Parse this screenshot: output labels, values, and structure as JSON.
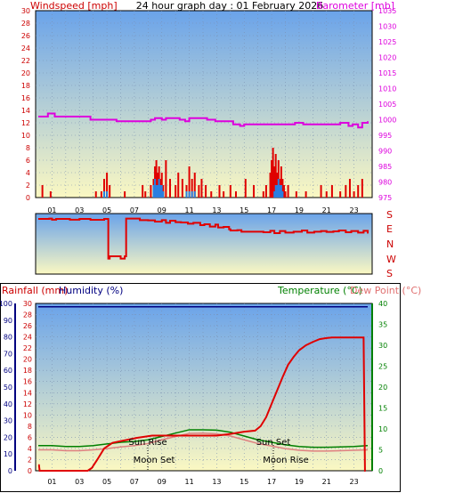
{
  "colors": {
    "sky_top": "#6aa3ea",
    "sky_bottom": "#fbf8c2",
    "wind": "#e00000",
    "gust": "#2a7fe0",
    "barometer": "#dd00dd",
    "rain": "#e00000",
    "humidity": "#000080",
    "temperature": "#008000",
    "dewpoint": "#e08080",
    "direction": "#e00000"
  },
  "charts": {
    "wind_baro": {
      "title": "24 hour graph day : 01 February 2026",
      "left_label": "Windspeed [mph]",
      "right_label": "Barometer [mb]"
    },
    "direction": {
      "compass_labels": [
        "S",
        "E",
        "N",
        "W",
        "S"
      ]
    },
    "temp_rain": {
      "left_label_1": "Rainfall (mm)",
      "left_label_2": "Humidity (%)",
      "right_label_1": "Temperature (°C)",
      "right_label_2": "Dew Point (°C)",
      "annotations": {
        "sun_rise": "Sun Rise",
        "sun_set": "Sun Set",
        "moon_set": "Moon Set",
        "moon_rise": "Moon Rise"
      }
    }
  },
  "chart_data": [
    {
      "type": "line",
      "title": "24 hour graph day : 01 February 2026",
      "xlabel": "",
      "x_ticks": [
        "01",
        "03",
        "05",
        "07",
        "09",
        "11",
        "13",
        "15",
        "17",
        "19",
        "21",
        "23"
      ],
      "xlim": [
        0,
        24
      ],
      "y_left": {
        "label": "Windspeed [mph]",
        "ylim": [
          0,
          30
        ],
        "ticks": [
          0,
          2,
          4,
          6,
          8,
          10,
          12,
          14,
          16,
          18,
          20,
          22,
          24,
          26,
          28,
          30
        ]
      },
      "y_right": {
        "label": "Barometer [mb]",
        "ylim": [
          975,
          1035
        ],
        "ticks": [
          975,
          980,
          985,
          990,
          995,
          1000,
          1005,
          1010,
          1015,
          1020,
          1025,
          1030,
          1035
        ]
      },
      "series": [
        {
          "name": "Barometer",
          "axis": "right",
          "x": [
            0,
            0.7,
            1.2,
            3.3,
            3.8,
            5.7,
            7.2,
            8.2,
            8.5,
            9.0,
            9.3,
            9.5,
            10.3,
            10.7,
            11.0,
            11.7,
            12.3,
            12.9,
            14.2,
            14.7,
            15.0,
            15.5,
            16.3,
            17.0,
            18.7,
            19.3,
            20.6,
            21.3,
            22.0,
            22.6,
            22.9,
            23.3,
            23.6,
            24.0
          ],
          "y": [
            1001,
            1002,
            1001,
            1001,
            1000,
            999.5,
            999.5,
            1000,
            1000.5,
            1000,
            1000.5,
            1000.5,
            1000,
            999.5,
            1000.5,
            1000.5,
            1000,
            999.5,
            998.5,
            998,
            998.5,
            998.5,
            998.5,
            998.5,
            999,
            998.5,
            998.5,
            998.5,
            999,
            998,
            998.5,
            997.5,
            999,
            999.5
          ]
        },
        {
          "name": "Windspeed",
          "axis": "left",
          "x": [
            0.3,
            0.4,
            0.9,
            4.2,
            4.6,
            4.8,
            5.0,
            5.2,
            6.3,
            7.6,
            7.8,
            8.2,
            8.4,
            8.5,
            8.6,
            8.7,
            8.8,
            8.9,
            9.0,
            9.1,
            9.3,
            9.6,
            10.0,
            10.2,
            10.5,
            10.8,
            11.0,
            11.2,
            11.4,
            11.7,
            11.9,
            12.2,
            12.6,
            13.2,
            13.5,
            14.0,
            14.4,
            15.1,
            15.7,
            16.4,
            16.6,
            16.9,
            17.0,
            17.1,
            17.2,
            17.3,
            17.4,
            17.5,
            17.6,
            17.7,
            17.8,
            17.9,
            18.0,
            18.2,
            18.8,
            19.5,
            20.6,
            21.0,
            21.4,
            22.0,
            22.4,
            22.7,
            23.0,
            23.3,
            23.6
          ],
          "y": [
            2,
            0,
            1,
            1,
            1,
            3,
            4,
            2,
            1,
            2,
            1,
            2,
            3,
            5,
            6,
            4,
            5,
            3,
            4,
            2,
            6,
            3,
            2,
            4,
            3,
            2,
            5,
            3,
            4,
            2,
            3,
            2,
            1,
            2,
            1,
            2,
            1,
            3,
            2,
            1,
            2,
            4,
            6,
            8,
            5,
            7,
            4,
            6,
            3,
            5,
            3,
            2,
            1,
            2,
            1,
            1,
            2,
            1,
            2,
            1,
            2,
            3,
            1,
            2,
            3
          ]
        },
        {
          "name": "Gust",
          "axis": "left",
          "x": [
            4.8,
            5.0,
            8.4,
            8.5,
            8.6,
            8.7,
            8.8,
            8.9,
            9.0,
            9.1,
            10.8,
            11.0,
            11.2,
            11.4,
            17.2,
            17.3,
            17.4,
            17.5,
            17.6,
            17.7,
            17.8
          ],
          "y": [
            1,
            1,
            2,
            3,
            2,
            2,
            3,
            2,
            2,
            1,
            1,
            1,
            1,
            1,
            1,
            2,
            2,
            3,
            2,
            2,
            1
          ]
        }
      ]
    },
    {
      "type": "line",
      "title": "",
      "xlim": [
        0,
        24
      ],
      "compass_labels": [
        "S",
        "E",
        "N",
        "W",
        "S"
      ],
      "series": [
        {
          "name": "Wind Direction",
          "x": [
            0,
            0.8,
            1.0,
            1.3,
            2.0,
            2.3,
            3.0,
            3.8,
            4.8,
            5.1,
            5.2,
            6.0,
            6.3,
            6.4,
            7.4,
            8.0,
            8.5,
            9.0,
            9.3,
            9.6,
            10.0,
            10.4,
            10.9,
            11.3,
            11.8,
            12.1,
            12.5,
            12.9,
            13.1,
            13.5,
            13.9,
            14.0,
            14.5,
            14.8,
            15.6,
            16.4,
            16.9,
            17.2,
            17.6,
            18.0,
            18.6,
            19.2,
            19.6,
            20.1,
            20.6,
            21.0,
            21.5,
            21.9,
            22.4,
            22.8,
            23.3,
            23.7,
            24.0
          ],
          "y": [
            348,
            350,
            343,
            348,
            348,
            343,
            348,
            342,
            348,
            80,
            96,
            80,
            96,
            350,
            340,
            338,
            330,
            340,
            322,
            336,
            326,
            324,
            316,
            322,
            306,
            312,
            296,
            310,
            290,
            294,
            278,
            270,
            272,
            262,
            262,
            258,
            268,
            252,
            266,
            256,
            262,
            270,
            256,
            262,
            266,
            260,
            264,
            270,
            258,
            266,
            256,
            268,
            250
          ]
        }
      ]
    },
    {
      "type": "line",
      "title": "",
      "x_ticks": [
        "01",
        "03",
        "05",
        "07",
        "09",
        "11",
        "13",
        "15",
        "17",
        "19",
        "21",
        "23"
      ],
      "xlim": [
        0,
        24
      ],
      "y_left_rain": {
        "label": "Rainfall (mm)",
        "ylim": [
          0,
          30
        ],
        "ticks": [
          0,
          2,
          4,
          6,
          8,
          10,
          12,
          14,
          16,
          18,
          20,
          22,
          24,
          26,
          28,
          30
        ]
      },
      "y_left_humidity": {
        "label": "Humidity (%)",
        "ylim": [
          0,
          100
        ],
        "ticks": [
          0,
          10,
          20,
          30,
          40,
          50,
          60,
          70,
          80,
          90,
          100
        ]
      },
      "y_right": {
        "label": "Temperature (°C)",
        "ylim": [
          0,
          40
        ],
        "ticks": [
          0,
          5,
          10,
          15,
          20,
          25,
          30,
          35,
          40
        ]
      },
      "annotations": [
        {
          "text": "Sun Rise",
          "x": 7.7
        },
        {
          "text": "Sun Set",
          "x": 16.6
        },
        {
          "text": "Moon Set",
          "x": 7.1
        },
        {
          "text": "Moon Rise",
          "x": 16.5
        }
      ],
      "series": [
        {
          "name": "Rainfall",
          "axis": "left_rain",
          "x": [
            0.0,
            0.05,
            0.1,
            3.6,
            3.9,
            4.3,
            4.8,
            5.4,
            6.2,
            7.2,
            8.3,
            9.0,
            10.0,
            11.0,
            12.0,
            13.0,
            14.0,
            15.0,
            15.8,
            16.2,
            16.6,
            17.0,
            17.4,
            17.8,
            18.2,
            18.6,
            19.0,
            19.5,
            20.0,
            20.5,
            21.0,
            21.4,
            22.0,
            23.0,
            23.7,
            23.8,
            23.85
          ],
          "y": [
            1,
            1,
            0,
            0,
            0.5,
            2,
            4,
            5,
            5.4,
            5.9,
            6.3,
            6.3,
            6.3,
            6.3,
            6.3,
            6.3,
            6.6,
            7.0,
            7.2,
            8,
            9.6,
            12.0,
            14.4,
            16.8,
            19.0,
            20.4,
            21.6,
            22.5,
            23.1,
            23.6,
            23.8,
            23.9,
            23.9,
            23.9,
            23.9,
            0,
            0
          ]
        },
        {
          "name": "Humidity",
          "axis": "left_humidity",
          "x": [
            0,
            24
          ],
          "y": [
            98,
            98
          ]
        },
        {
          "name": "Temperature",
          "axis": "right",
          "x": [
            0,
            1.0,
            2.0,
            3.0,
            4.0,
            5.0,
            6.0,
            7.0,
            8.0,
            9.0,
            10.0,
            11.0,
            12.0,
            13.0,
            14.0,
            15.0,
            16.0,
            17.0,
            18.0,
            19.0,
            20.0,
            21.0,
            22.0,
            23.0,
            24.0
          ],
          "y": [
            6.0,
            6.0,
            5.8,
            5.8,
            6.0,
            6.4,
            6.8,
            7.0,
            7.4,
            8.2,
            9.0,
            9.8,
            9.8,
            9.7,
            9.2,
            8.3,
            7.4,
            6.8,
            6.2,
            5.8,
            5.6,
            5.6,
            5.7,
            5.8,
            6.0
          ]
        },
        {
          "name": "Dew Point",
          "axis": "right",
          "x": [
            0,
            1.0,
            2.0,
            3.0,
            4.0,
            5.0,
            6.0,
            7.0,
            8.0,
            9.0,
            10.0,
            11.0,
            12.0,
            13.0,
            14.0,
            15.0,
            16.0,
            17.0,
            18.0,
            19.0,
            20.0,
            21.0,
            22.0,
            23.0,
            24.0
          ],
          "y": [
            5.0,
            5.0,
            4.8,
            4.8,
            5.0,
            5.3,
            5.7,
            6.0,
            6.5,
            7.4,
            8.2,
            8.9,
            9.0,
            8.8,
            8.3,
            7.4,
            6.5,
            5.9,
            5.3,
            4.9,
            4.7,
            4.7,
            4.8,
            4.9,
            5.0
          ]
        }
      ]
    }
  ]
}
